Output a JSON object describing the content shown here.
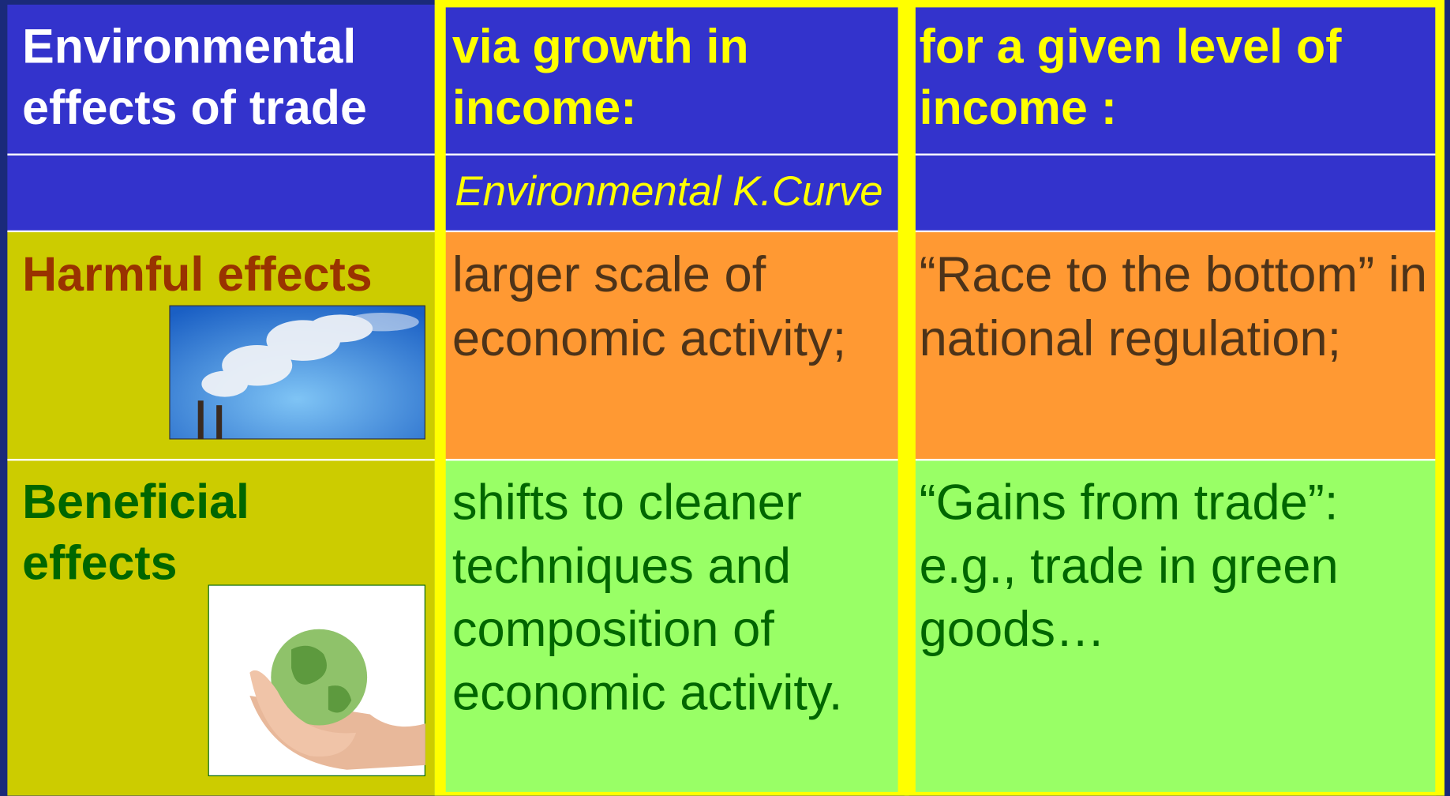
{
  "table": {
    "header": [
      "Environmental effects of trade",
      "via growth in income:",
      "for a given level of income :"
    ],
    "subheader": [
      "Environmental K.Curve"
    ],
    "rows": [
      {
        "label": "Harmful effects",
        "cells": [
          "larger scale of economic activity;",
          "“Race to the bottom” in national regulation;"
        ]
      },
      {
        "label": "Beneficial effects",
        "cells": [
          "shifts to cleaner techniques and composition of economic activity.",
          "“Gains from trade”: e.g., trade in green goods…"
        ]
      }
    ]
  }
}
